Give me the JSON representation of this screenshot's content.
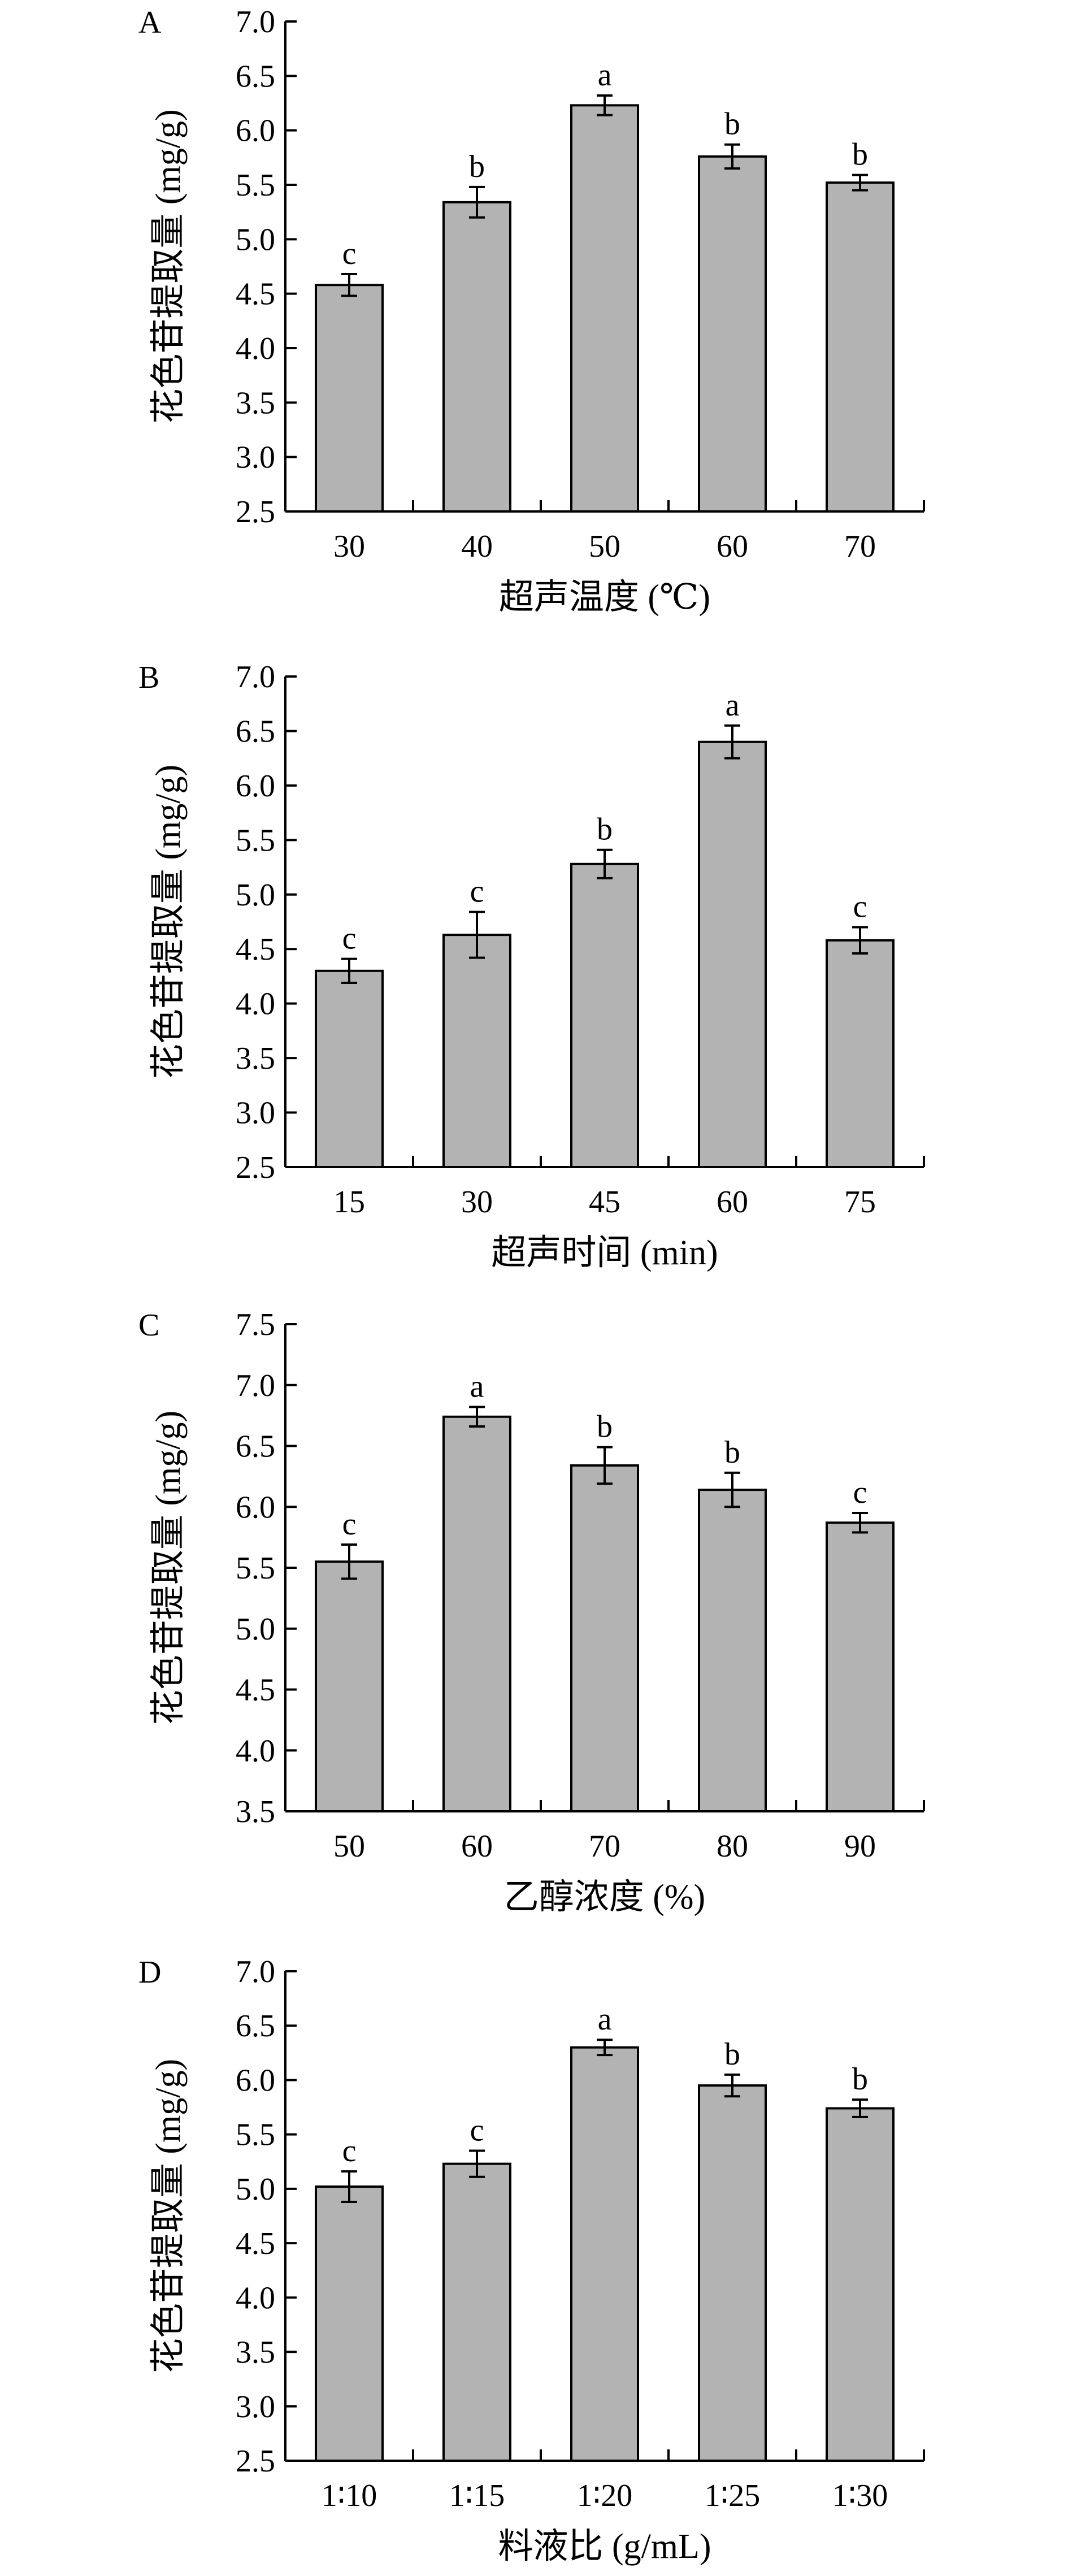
{
  "chart_data": [
    {
      "type": "bar",
      "panel": "A",
      "xlabel": "超声温度 (℃)",
      "ylabel": "花色苷提取量 (mg/g)",
      "categories": [
        "30",
        "40",
        "50",
        "60",
        "70"
      ],
      "values": [
        4.58,
        5.34,
        6.23,
        5.76,
        5.52
      ],
      "errors": [
        0.1,
        0.14,
        0.09,
        0.11,
        0.07
      ],
      "significance": [
        "c",
        "b",
        "a",
        "b",
        "b"
      ],
      "ylim": [
        2.5,
        7.0
      ],
      "yticks": [
        "2.5",
        "3.0",
        "3.5",
        "4.0",
        "4.5",
        "5.0",
        "5.5",
        "6.0",
        "6.5",
        "7.0"
      ]
    },
    {
      "type": "bar",
      "panel": "B",
      "xlabel": "超声时间 (min)",
      "ylabel": "花色苷提取量 (mg/g)",
      "categories": [
        "15",
        "30",
        "45",
        "60",
        "75"
      ],
      "values": [
        4.3,
        4.63,
        5.28,
        6.4,
        4.58
      ],
      "errors": [
        0.11,
        0.21,
        0.13,
        0.15,
        0.12
      ],
      "significance": [
        "c",
        "c",
        "b",
        "a",
        "c"
      ],
      "ylim": [
        2.5,
        7.0
      ],
      "yticks": [
        "2.5",
        "3.0",
        "3.5",
        "4.0",
        "4.5",
        "5.0",
        "5.5",
        "6.0",
        "6.5",
        "7.0"
      ]
    },
    {
      "type": "bar",
      "panel": "C",
      "xlabel": "乙醇浓度 (%)",
      "ylabel": "花色苷提取量 (mg/g)",
      "categories": [
        "50",
        "60",
        "70",
        "80",
        "90"
      ],
      "values": [
        5.55,
        6.74,
        6.34,
        6.14,
        5.87
      ],
      "errors": [
        0.14,
        0.08,
        0.15,
        0.14,
        0.08
      ],
      "significance": [
        "c",
        "a",
        "b",
        "b",
        "c"
      ],
      "ylim": [
        3.5,
        7.5
      ],
      "yticks": [
        "3.5",
        "4.0",
        "4.5",
        "5.0",
        "5.5",
        "6.0",
        "6.5",
        "7.0",
        "7.5"
      ]
    },
    {
      "type": "bar",
      "panel": "D",
      "xlabel": "料液比 (g/mL)",
      "ylabel": "花色苷提取量 (mg/g)",
      "categories": [
        "1∶10",
        "1∶15",
        "1∶20",
        "1∶25",
        "1∶30"
      ],
      "values": [
        5.02,
        5.23,
        6.3,
        5.95,
        5.74
      ],
      "errors": [
        0.14,
        0.12,
        0.07,
        0.1,
        0.08
      ],
      "significance": [
        "c",
        "c",
        "a",
        "b",
        "b"
      ],
      "ylim": [
        2.5,
        7.0
      ],
      "yticks": [
        "2.5",
        "3.0",
        "3.5",
        "4.0",
        "4.5",
        "5.0",
        "5.5",
        "6.0",
        "6.5",
        "7.0"
      ]
    }
  ]
}
